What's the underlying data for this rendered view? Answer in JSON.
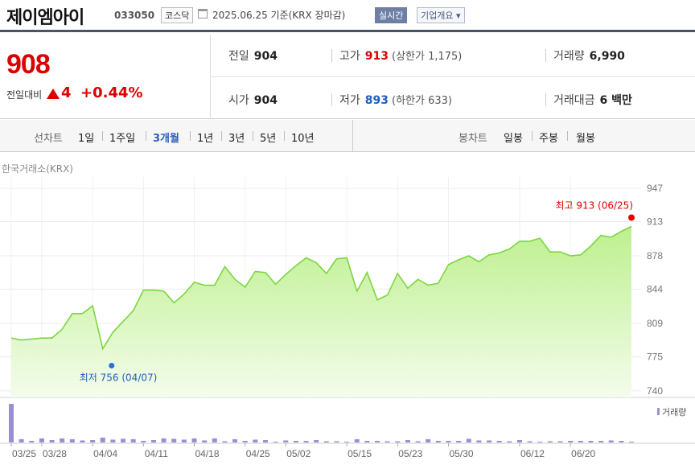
{
  "header": {
    "stock_name": "제이엠아이",
    "code": "033050",
    "market": "코스닥",
    "date_text": "2025.06.25 기준(KRX 장마감)",
    "realtime_label": "실시간",
    "company_info_label": "기업개요 ▾",
    "calendar_icon": "calendar-icon"
  },
  "price": {
    "current": "908",
    "change_label": "전일대비",
    "change_value": "4",
    "change_pct": "+0.44%",
    "colors": {
      "up": "#dd0000",
      "down": "#1e5fbf"
    }
  },
  "stats": {
    "prev_close_label": "전일",
    "prev_close": "904",
    "open_label": "시가",
    "open": "904",
    "high_label": "고가",
    "high": "913",
    "upper_limit_text": "(상한가 1,175)",
    "low_label": "저가",
    "low": "893",
    "lower_limit_text": "(하한가 633)",
    "volume_label": "거래량",
    "volume": "6,990",
    "amount_label": "거래대금",
    "amount": "6 백만"
  },
  "periods": {
    "line_label": "선차트",
    "line_items": [
      "1일",
      "1주일",
      "3개월",
      "1년",
      "3년",
      "5년",
      "10년"
    ],
    "selected": "3개월",
    "candle_label": "봉차트",
    "candle_items": [
      "일봉",
      "주봉",
      "월봉"
    ]
  },
  "chart_data": {
    "type": "area",
    "exchange_label": "한국거래소(KRX)",
    "y_ticks": [
      740,
      775,
      809,
      844,
      878,
      913,
      947
    ],
    "ylim": [
      735,
      952
    ],
    "x_tick_labels": [
      "03/25",
      "03/28",
      "04/04",
      "04/11",
      "04/18",
      "04/25",
      "05/02",
      "05/15",
      "05/23",
      "05/30",
      "06/12",
      "06/20"
    ],
    "x_tick_index": [
      0,
      3,
      8,
      13,
      18,
      23,
      27,
      33,
      38,
      43,
      50,
      55
    ],
    "prices": [
      794,
      792,
      793,
      794,
      794,
      803,
      819,
      819,
      827,
      783,
      800,
      811,
      822,
      843,
      843,
      842,
      830,
      839,
      851,
      848,
      848,
      867,
      854,
      846,
      862,
      861,
      849,
      859,
      868,
      876,
      871,
      860,
      875,
      876,
      842,
      861,
      833,
      838,
      860,
      845,
      854,
      848,
      850,
      869,
      874,
      878,
      872,
      879,
      881,
      885,
      893,
      893,
      896,
      882,
      882,
      878,
      879,
      888,
      899,
      897,
      903,
      908
    ],
    "volumes": [
      95,
      8,
      4,
      10,
      6,
      10,
      8,
      5,
      6,
      12,
      7,
      9,
      8,
      4,
      6,
      10,
      9,
      7,
      10,
      5,
      10,
      3,
      8,
      4,
      7,
      6,
      2,
      5,
      4,
      4,
      6,
      3,
      3,
      2,
      8,
      4,
      4,
      3,
      3,
      6,
      3,
      8,
      4,
      4,
      4,
      9,
      5,
      5,
      4,
      3,
      6,
      3,
      2,
      3,
      3,
      4,
      4,
      4,
      4,
      5,
      4,
      2
    ],
    "high_annotation": "최고 913 (06/25)",
    "low_annotation": "최저 756 (04/07)",
    "high_value": 913,
    "low_value": 756,
    "high_index": 61,
    "low_index": 9,
    "volume_legend": "거래량",
    "colors": {
      "line": "#7cd640",
      "fill_top": "#bdf08e",
      "fill_bottom": "#f4fcec",
      "volume": "#9b90cf",
      "high_dot": "#e00000",
      "low_dot": "#2a6fd6"
    }
  }
}
